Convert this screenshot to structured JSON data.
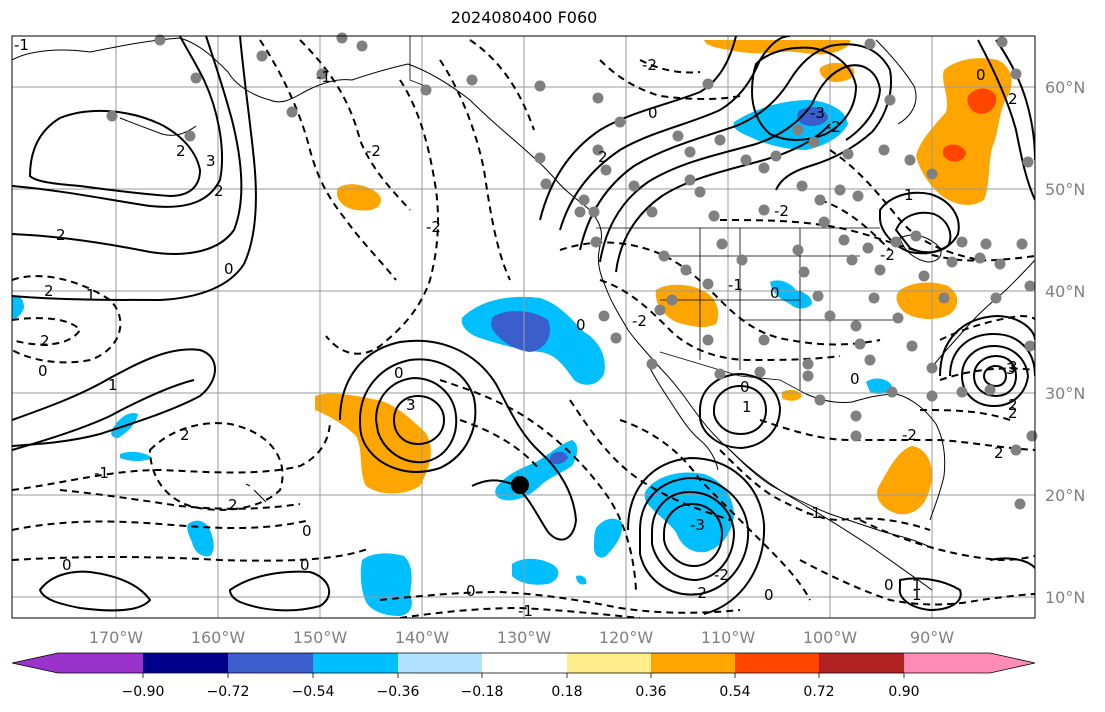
{
  "title": "2024080400 F060",
  "map": {
    "lat_labels": [
      "60°N",
      "50°N",
      "40°N",
      "30°N",
      "20°N",
      "10°N"
    ],
    "lon_labels": [
      "170°W",
      "160°W",
      "150°W",
      "140°W",
      "130°W",
      "120°W",
      "110°W",
      "100°W",
      "90°W"
    ],
    "contour_labels": [
      "2",
      "2",
      "3",
      "2",
      "0",
      "2",
      "1",
      "0",
      "1",
      "2",
      "3",
      "0",
      "-3",
      "-2",
      "-2",
      "0",
      "2",
      "0",
      "1",
      "0",
      "-2",
      "-1",
      "-1",
      "3",
      "2",
      "0",
      "2",
      "2",
      "-1",
      "-2",
      "-2",
      "-2",
      "-2",
      "-2",
      "0",
      "0",
      "1",
      "2",
      "2",
      "0",
      "-3",
      "-2",
      "0",
      "-1",
      "0",
      "1",
      "3",
      "0",
      "2",
      "0",
      "-2",
      "0",
      "-1",
      "-1",
      "1"
    ],
    "gridline_color": "#999999",
    "land_outline_color": "#000000"
  },
  "colorbar": {
    "tick_labels": [
      "−0.90",
      "−0.72",
      "−0.54",
      "−0.36",
      "−0.18",
      "0.18",
      "0.36",
      "0.54",
      "0.72",
      "0.90"
    ],
    "colors": [
      "#9933cc",
      "#00008b",
      "#3a5fcd",
      "#00bfff",
      "#b0e2ff",
      "#ffffff",
      "#ffec8b",
      "#ffa500",
      "#ff4500",
      "#b22222",
      "#ff8cb4"
    ]
  }
}
